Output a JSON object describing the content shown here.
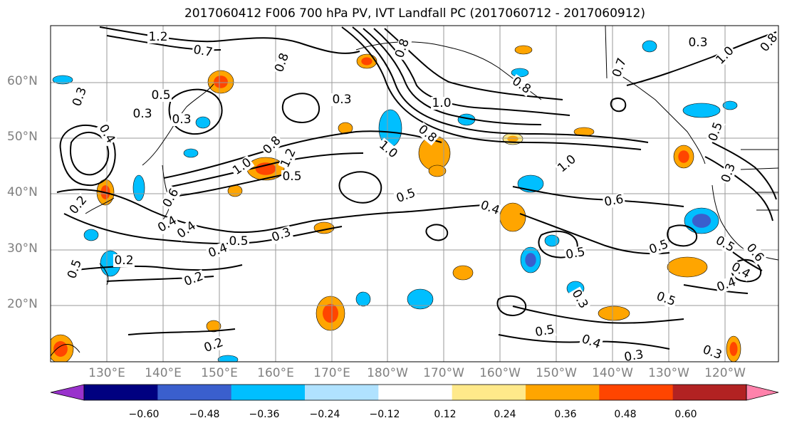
{
  "title": "2017060412 F006 700 hPa PV, IVT Landfall PC (2017060712 - 2017060912)",
  "lat_labels": [
    "60°N",
    "50°N",
    "40°N",
    "30°N",
    "20°N"
  ],
  "lon_labels": [
    "130°E",
    "140°E",
    "150°E",
    "160°E",
    "170°E",
    "180°W",
    "170°W",
    "160°W",
    "150°W",
    "140°W",
    "130°W",
    "120°W"
  ],
  "colorbar": {
    "colors": [
      "#9932cc",
      "#000080",
      "#3a5fcd",
      "#00bfff",
      "#b0e2ff",
      "#ffffff",
      "#ffe98a",
      "#ffa500",
      "#ff4500",
      "#b22222",
      "#ff82ab"
    ],
    "tick_labels": [
      "−0.60",
      "−0.48",
      "−0.36",
      "−0.24",
      "−0.12",
      "0.12",
      "0.24",
      "0.36",
      "0.48",
      "0.60"
    ]
  },
  "contour_labels": [
    "1.2",
    "0.7",
    "0.8",
    "0.8",
    "1.0",
    "0.8",
    "0.3",
    "0.3",
    "0.5",
    "0.3",
    "0.4",
    "0.8",
    "1.0",
    "1.2",
    "0.3",
    "1.0",
    "0.5",
    "0.8",
    "0.5",
    "1.0",
    "0.6",
    "0.5",
    "0.4",
    "0.5",
    "0.3",
    "0.4",
    "0.2",
    "0.5",
    "0.4",
    "0.3",
    "0.5",
    "0.5",
    "0.3",
    "0.5",
    "0.4",
    "0.5",
    "0.4",
    "0.3",
    "0.2",
    "0.2",
    "0.2",
    "0.5",
    "0.3",
    "0.4",
    "0.6",
    "0.7",
    "1.0",
    "0.8",
    "0.4",
    "0.6",
    "0.3"
  ]
}
